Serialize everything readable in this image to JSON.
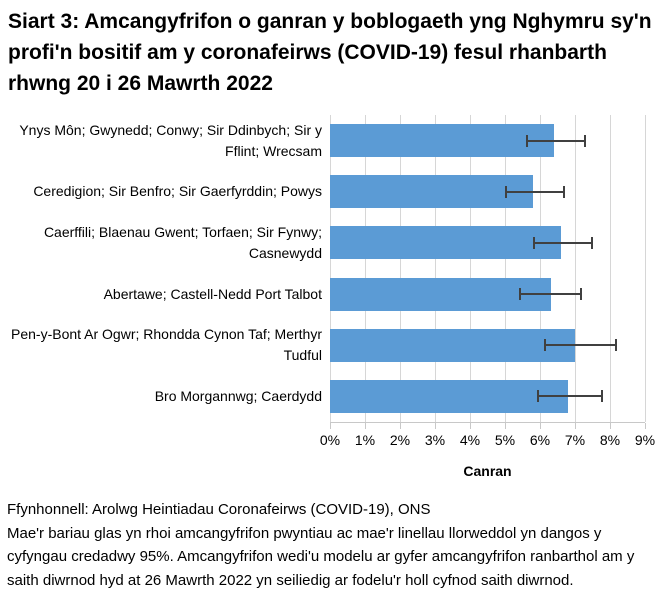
{
  "title": "Siart 3: Amcangyfrifon o ganran y boblogaeth yng Nghymru sy'n profi'n bositif am y coronafeirws (COVID-19) fesul rhanbarth rhwng 20 i 26 Mawrth 2022",
  "chart_data": {
    "type": "bar",
    "orientation": "horizontal",
    "categories": [
      "Ynys Môn; Gwynedd; Conwy; Sir Ddinbych; Sir y Fflint; Wrecsam",
      "Ceredigion; Sir Benfro; Sir Gaerfyrddin; Powys",
      "Caerffili; Blaenau Gwent; Torfaen; Sir Fynwy; Casnewydd",
      "Abertawe; Castell-Nedd Port Talbot",
      "Pen-y-Bont Ar Ogwr; Rhondda Cynon Taf; Merthyr Tudful",
      "Bro Morgannwg; Caerdydd"
    ],
    "values": [
      6.4,
      5.8,
      6.6,
      6.3,
      7.0,
      6.8
    ],
    "ci_low": [
      5.6,
      5.0,
      5.8,
      5.4,
      6.1,
      5.9
    ],
    "ci_high": [
      7.3,
      6.7,
      7.5,
      7.2,
      8.2,
      7.8
    ],
    "ci_label": "cyfyngau credadwy 95%",
    "xlabel": "Canran",
    "xlim": [
      0,
      9
    ],
    "xticks": [
      "0%",
      "1%",
      "2%",
      "3%",
      "4%",
      "5%",
      "6%",
      "7%",
      "8%",
      "9%"
    ],
    "grid": true,
    "legend": "none",
    "bar_color": "#5B9BD5",
    "errorbar_color": "#404040",
    "gridline_color": "#D6D6D6"
  },
  "footer": {
    "source": "Ffynhonnell: Arolwg Heintiadau Coronafeirws (COVID-19), ONS",
    "note": "Mae'r bariau glas yn rhoi amcangyfrifon pwyntiau ac mae'r linellau llorweddol yn dangos y cyfyngau credadwy 95%. Amcangyfrifon wedi'u modelu ar gyfer amcangyfrifon ranbarthol am y saith diwrnod hyd at 26 Mawrth 2022 yn seiliedig ar fodelu'r holl cyfnod saith diwrnod."
  }
}
